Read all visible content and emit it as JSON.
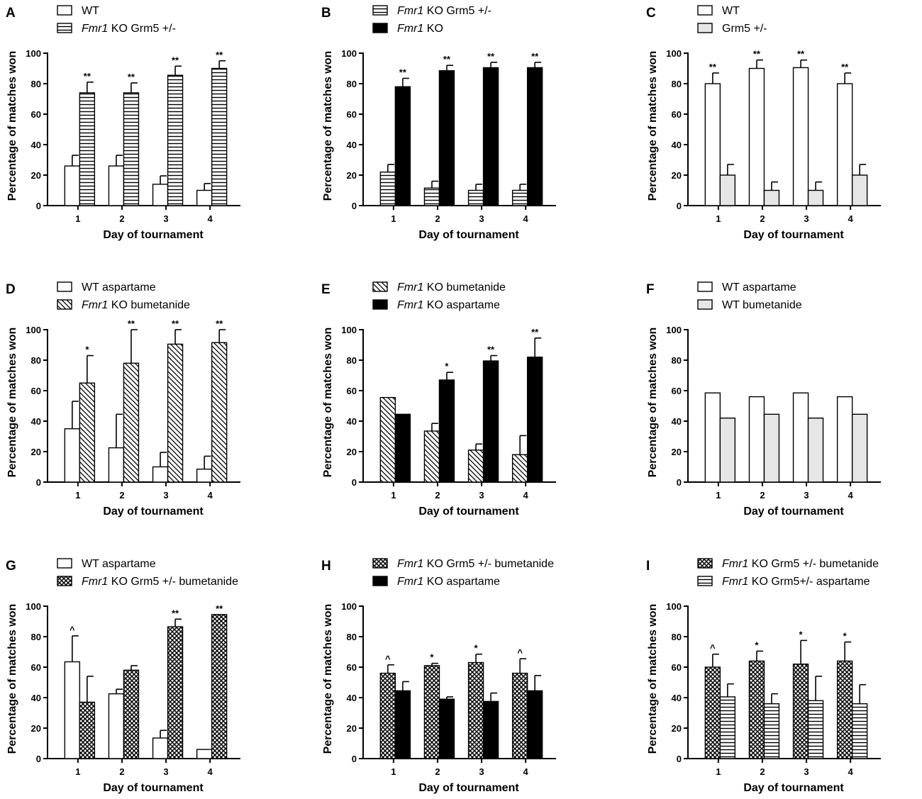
{
  "chart_data": [
    {
      "type": "bar",
      "letter": "A",
      "title": "",
      "xlabel": "Day of tournament",
      "ylabel": "Percentage of matches won",
      "ylim": [
        0,
        100
      ],
      "yticks": [
        0,
        20,
        40,
        60,
        80,
        100
      ],
      "categories": [
        "1",
        "2",
        "3",
        "4"
      ],
      "series": [
        {
          "legend_italic": "",
          "legend_text": "WT",
          "pattern": "white",
          "values": [
            26,
            26,
            14,
            10
          ],
          "errors": [
            7,
            7,
            5.5,
            4.5
          ],
          "labels": [
            "",
            "",
            "",
            ""
          ]
        },
        {
          "legend_italic": "Fmr1",
          "legend_text": " KO Grm5 +/-",
          "pattern": "hstripe",
          "values": [
            74,
            74,
            85.5,
            90
          ],
          "errors": [
            7,
            6.5,
            6,
            5
          ],
          "labels": [
            "**",
            "**",
            "**",
            "**"
          ]
        }
      ]
    },
    {
      "type": "bar",
      "letter": "B",
      "title": "",
      "xlabel": "Day of tournament",
      "ylabel": "Percentage of matches won",
      "ylim": [
        0,
        100
      ],
      "yticks": [
        0,
        20,
        40,
        60,
        80,
        100
      ],
      "categories": [
        "1",
        "2",
        "3",
        "4"
      ],
      "series": [
        {
          "legend_italic": "Fmr1",
          "legend_text": " KO Grm5 +/-",
          "pattern": "hstripe",
          "values": [
            22,
            11.5,
            10,
            10
          ],
          "errors": [
            5,
            4.5,
            4,
            4
          ],
          "labels": [
            "",
            "",
            "",
            ""
          ]
        },
        {
          "legend_italic": "Fmr1",
          "legend_text": " KO",
          "pattern": "black",
          "values": [
            78,
            88.5,
            90.5,
            90.5
          ],
          "errors": [
            5.5,
            3.5,
            3.5,
            3.5
          ],
          "labels": [
            "**",
            "**",
            "**",
            "**"
          ]
        }
      ]
    },
    {
      "type": "bar",
      "letter": "C",
      "title": "",
      "xlabel": "Day of tournament",
      "ylabel": "Percentage of matches won",
      "ylim": [
        0,
        100
      ],
      "yticks": [
        0,
        20,
        40,
        60,
        80,
        100
      ],
      "categories": [
        "1",
        "2",
        "3",
        "4"
      ],
      "series": [
        {
          "legend_italic": "",
          "legend_text": "WT",
          "pattern": "white",
          "values": [
            80,
            90,
            90.5,
            80
          ],
          "errors": [
            7,
            5.5,
            5,
            7
          ],
          "labels": [
            "**",
            "**",
            "**",
            "**"
          ]
        },
        {
          "legend_italic": "",
          "legend_text": "Grm5 +/-",
          "pattern": "gray",
          "values": [
            20,
            10,
            10,
            20
          ],
          "errors": [
            7,
            5.5,
            5.5,
            7
          ],
          "labels": [
            "",
            "",
            "",
            ""
          ]
        }
      ]
    },
    {
      "type": "bar",
      "letter": "D",
      "title": "",
      "xlabel": "Day of tournament",
      "ylabel": "Percentage of matches won",
      "ylim": [
        0,
        100
      ],
      "yticks": [
        0,
        20,
        40,
        60,
        80,
        100
      ],
      "categories": [
        "1",
        "2",
        "3",
        "4"
      ],
      "series": [
        {
          "legend_italic": "",
          "legend_text": "WT aspartame",
          "pattern": "white",
          "values": [
            35,
            22.5,
            10,
            8.5
          ],
          "errors": [
            18,
            22,
            9.5,
            8.5
          ],
          "labels": [
            "",
            "",
            "",
            ""
          ]
        },
        {
          "legend_italic": "Fmr1",
          "legend_text": " KO bumetanide",
          "pattern": "diag",
          "values": [
            65,
            78,
            90.5,
            91.5
          ],
          "errors": [
            18,
            22,
            9.5,
            8.5
          ],
          "labels": [
            "*",
            "**",
            "**",
            "**"
          ]
        }
      ]
    },
    {
      "type": "bar",
      "letter": "E",
      "title": "",
      "xlabel": "Day of tournament",
      "ylabel": "Percentage of matches won",
      "ylim": [
        0,
        100
      ],
      "yticks": [
        0,
        20,
        40,
        60,
        80,
        100
      ],
      "categories": [
        "1",
        "2",
        "3",
        "4"
      ],
      "series": [
        {
          "legend_italic": "Fmr1",
          "legend_text": " KO bumetanide",
          "pattern": "diag",
          "values": [
            55.5,
            33.5,
            21,
            18
          ],
          "errors": [
            0,
            5,
            4,
            12.5
          ],
          "labels": [
            "",
            "",
            "",
            ""
          ]
        },
        {
          "legend_italic": "Fmr1",
          "legend_text": " KO aspartame",
          "pattern": "black",
          "values": [
            44.5,
            67,
            79.5,
            82
          ],
          "errors": [
            0,
            5,
            3.5,
            12.5
          ],
          "labels": [
            "",
            "*",
            "**",
            "**"
          ]
        }
      ]
    },
    {
      "type": "bar",
      "letter": "F",
      "title": "",
      "xlabel": "Day of tournament",
      "ylabel": "Percentage of matches won",
      "ylim": [
        0,
        100
      ],
      "yticks": [
        0,
        20,
        40,
        60,
        80,
        100
      ],
      "categories": [
        "1",
        "2",
        "3",
        "4"
      ],
      "series": [
        {
          "legend_italic": "",
          "legend_text": "WT aspartame",
          "pattern": "white",
          "values": [
            58.5,
            56,
            58.5,
            56
          ],
          "errors": [
            0,
            0,
            0,
            0
          ],
          "labels": [
            "",
            "",
            "",
            ""
          ]
        },
        {
          "legend_italic": "",
          "legend_text": "WT bumetanide",
          "pattern": "gray",
          "values": [
            42,
            44.5,
            42,
            44.5
          ],
          "errors": [
            0,
            0,
            0,
            0
          ],
          "labels": [
            "",
            "",
            "",
            ""
          ]
        }
      ]
    },
    {
      "type": "bar",
      "letter": "G",
      "title": "",
      "xlabel": "Day of tournament",
      "ylabel": "Percentage of matches won",
      "ylim": [
        0,
        100
      ],
      "yticks": [
        0,
        20,
        40,
        60,
        80,
        100
      ],
      "categories": [
        "1",
        "2",
        "3",
        "4"
      ],
      "series": [
        {
          "legend_italic": "",
          "legend_text": "WT aspartame",
          "pattern": "white",
          "values": [
            63.5,
            42.5,
            13.5,
            6
          ],
          "errors": [
            17,
            3,
            5,
            0
          ],
          "labels": [
            "^",
            "",
            "",
            ""
          ]
        },
        {
          "legend_italic": "Fmr1",
          "legend_text": " KO Grm5 +/- bumetanide",
          "pattern": "cross",
          "values": [
            37,
            58,
            86.5,
            94.5
          ],
          "errors": [
            17,
            3,
            5,
            0
          ],
          "labels": [
            "",
            "",
            "**",
            "**"
          ]
        }
      ]
    },
    {
      "type": "bar",
      "letter": "H",
      "title": "",
      "xlabel": "Day of tournament",
      "ylabel": "Percentage of matches won",
      "ylim": [
        0,
        100
      ],
      "yticks": [
        0,
        20,
        40,
        60,
        80,
        100
      ],
      "categories": [
        "1",
        "2",
        "3",
        "4"
      ],
      "series": [
        {
          "legend_italic": "Fmr1",
          "legend_text": " KO Grm5 +/- bumetanide",
          "pattern": "cross",
          "values": [
            56,
            61,
            63,
            56
          ],
          "errors": [
            5.5,
            1.5,
            5.5,
            9.5
          ],
          "labels": [
            "^",
            "*",
            "*",
            "^"
          ]
        },
        {
          "legend_italic": "Fmr1",
          "legend_text": " KO aspartame",
          "pattern": "black",
          "values": [
            44.5,
            39,
            37.5,
            44.5
          ],
          "errors": [
            6,
            1.5,
            5.5,
            10
          ],
          "labels": [
            "",
            "",
            "",
            ""
          ]
        }
      ]
    },
    {
      "type": "bar",
      "letter": "I",
      "title": "",
      "xlabel": "Day of tournament",
      "ylabel": "Percentage of matches won",
      "ylim": [
        0,
        100
      ],
      "yticks": [
        0,
        20,
        40,
        60,
        80,
        100
      ],
      "categories": [
        "1",
        "2",
        "3",
        "4"
      ],
      "series": [
        {
          "legend_italic": "Fmr1",
          "legend_text": " KO Grm5 +/- bumetanide",
          "pattern": "cross",
          "values": [
            60,
            64,
            62,
            64
          ],
          "errors": [
            8.5,
            6.5,
            15.5,
            12.5
          ],
          "labels": [
            "^",
            "*",
            "*",
            "*"
          ]
        },
        {
          "legend_italic": "Fmr1",
          "legend_text": " KO Grm5+/- aspartame",
          "pattern": "hstripe",
          "values": [
            40.5,
            36,
            38,
            36
          ],
          "errors": [
            8.5,
            6.5,
            16,
            12.5
          ],
          "labels": [
            "",
            "",
            "",
            ""
          ]
        }
      ]
    }
  ],
  "colors": {
    "bar_stroke": "#000000",
    "gray_fill": "#e6e6e6",
    "black_fill": "#000000"
  }
}
